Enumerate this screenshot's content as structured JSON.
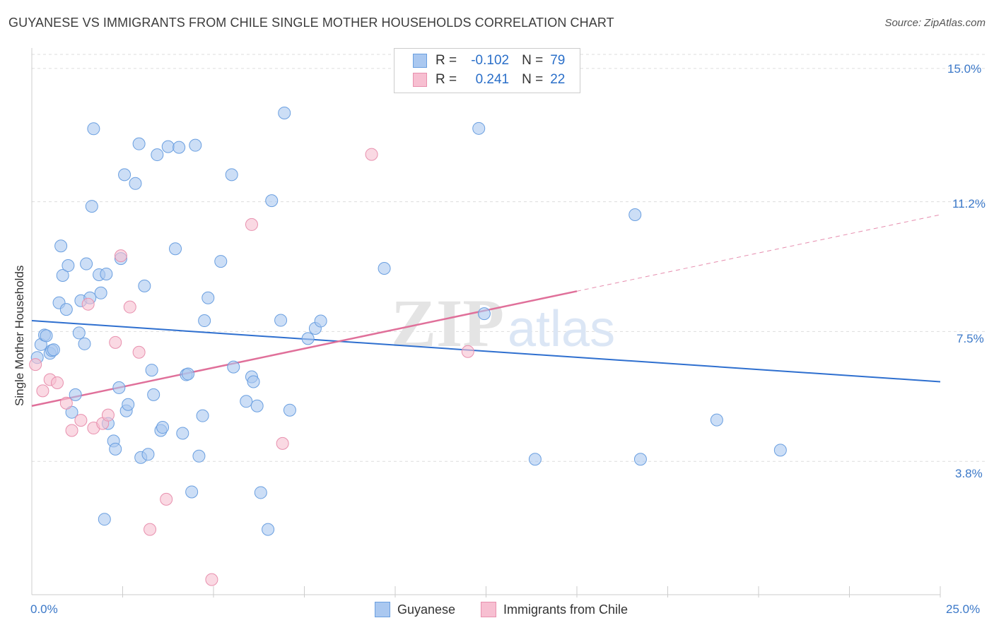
{
  "title": "GUYANESE VS IMMIGRANTS FROM CHILE SINGLE MOTHER HOUSEHOLDS CORRELATION CHART",
  "source": "Source: ZipAtlas.com",
  "legend": {
    "row1": {
      "r_label": "R =",
      "r_value": "-0.102",
      "n_label": "N =",
      "n_value": "79"
    },
    "row2": {
      "r_label": "R =",
      "r_value": "0.241",
      "n_label": "N =",
      "n_value": "22"
    }
  },
  "bottom_legend": {
    "series1": "Guyanese",
    "series2": "Immigrants from Chile"
  },
  "axis_ticks": {
    "x_min": "0.0%",
    "x_max": "25.0%",
    "y1": "15.0%",
    "y2": "11.2%",
    "y3": "7.5%",
    "y4": "3.8%"
  },
  "watermark": {
    "zip": "ZIP",
    "atlas": "atlas"
  },
  "colors": {
    "blue_fill": "#aac8f0",
    "blue_stroke": "#6a9fe0",
    "blue_line": "#2e6fcf",
    "pink_fill": "#f7bfd1",
    "pink_stroke": "#e890ae",
    "pink_line": "#e0709a",
    "tick_text": "#3b78c8"
  },
  "chart_data": {
    "type": "scatter",
    "title": "GUYANESE VS IMMIGRANTS FROM CHILE SINGLE MOTHER HOUSEHOLDS CORRELATION CHART",
    "xlabel": "",
    "ylabel": "Single Mother Households",
    "xlim": [
      0,
      25
    ],
    "ylim": [
      0,
      15.4
    ],
    "y_ticks": [
      3.8,
      7.5,
      11.2,
      15.0
    ],
    "grid": "horizontal dashed",
    "legend_placement": "top-center",
    "series": [
      {
        "name": "Guyanese",
        "R": -0.102,
        "N": 79,
        "trend": {
          "x": [
            0,
            25
          ],
          "y": [
            7.81,
            6.07
          ]
        },
        "points": [
          [
            0.15,
            6.76
          ],
          [
            0.25,
            7.13
          ],
          [
            0.35,
            7.4
          ],
          [
            0.4,
            7.38
          ],
          [
            0.5,
            6.88
          ],
          [
            0.55,
            6.96
          ],
          [
            0.6,
            6.98
          ],
          [
            0.75,
            8.32
          ],
          [
            0.8,
            9.94
          ],
          [
            0.85,
            9.1
          ],
          [
            0.95,
            8.13
          ],
          [
            1.0,
            9.38
          ],
          [
            1.2,
            5.7
          ],
          [
            1.1,
            5.2
          ],
          [
            1.3,
            7.46
          ],
          [
            1.35,
            8.38
          ],
          [
            1.45,
            7.15
          ],
          [
            1.5,
            9.43
          ],
          [
            1.6,
            8.46
          ],
          [
            1.65,
            11.07
          ],
          [
            1.7,
            13.28
          ],
          [
            1.85,
            9.12
          ],
          [
            1.9,
            8.6
          ],
          [
            2.0,
            2.15
          ],
          [
            2.05,
            9.14
          ],
          [
            2.1,
            4.88
          ],
          [
            2.25,
            4.38
          ],
          [
            2.3,
            4.15
          ],
          [
            2.4,
            5.9
          ],
          [
            2.45,
            9.58
          ],
          [
            2.55,
            11.97
          ],
          [
            2.6,
            5.24
          ],
          [
            2.65,
            5.42
          ],
          [
            2.85,
            11.72
          ],
          [
            2.95,
            12.85
          ],
          [
            3.0,
            3.91
          ],
          [
            3.1,
            8.8
          ],
          [
            3.2,
            4.0
          ],
          [
            3.3,
            6.4
          ],
          [
            3.35,
            5.7
          ],
          [
            3.45,
            12.54
          ],
          [
            3.55,
            4.68
          ],
          [
            3.6,
            4.77
          ],
          [
            3.75,
            12.77
          ],
          [
            3.95,
            9.86
          ],
          [
            4.05,
            12.75
          ],
          [
            4.15,
            4.6
          ],
          [
            4.25,
            6.27
          ],
          [
            4.3,
            6.29
          ],
          [
            4.4,
            2.93
          ],
          [
            4.5,
            12.81
          ],
          [
            4.6,
            3.95
          ],
          [
            4.7,
            5.1
          ],
          [
            4.75,
            7.81
          ],
          [
            4.85,
            8.46
          ],
          [
            5.2,
            9.5
          ],
          [
            5.5,
            11.97
          ],
          [
            5.55,
            6.49
          ],
          [
            5.9,
            5.51
          ],
          [
            6.05,
            6.21
          ],
          [
            6.1,
            6.07
          ],
          [
            6.2,
            5.38
          ],
          [
            6.3,
            2.91
          ],
          [
            6.5,
            1.86
          ],
          [
            6.6,
            11.23
          ],
          [
            6.85,
            7.82
          ],
          [
            6.95,
            13.73
          ],
          [
            7.1,
            5.26
          ],
          [
            7.6,
            7.3
          ],
          [
            7.8,
            7.59
          ],
          [
            7.95,
            7.8
          ],
          [
            9.7,
            9.3
          ],
          [
            12.3,
            13.29
          ],
          [
            12.45,
            8.01
          ],
          [
            13.85,
            3.86
          ],
          [
            16.6,
            10.83
          ],
          [
            16.75,
            3.86
          ],
          [
            18.85,
            4.98
          ],
          [
            20.6,
            4.12
          ]
        ]
      },
      {
        "name": "Immigrants from Chile",
        "R": 0.241,
        "N": 22,
        "trend": {
          "x": [
            0,
            25
          ],
          "y": [
            5.38,
            10.83
          ],
          "solid_until_x": 15.0
        },
        "points": [
          [
            0.1,
            6.56
          ],
          [
            0.3,
            5.81
          ],
          [
            0.5,
            6.13
          ],
          [
            0.7,
            6.04
          ],
          [
            0.95,
            5.46
          ],
          [
            1.1,
            4.68
          ],
          [
            1.35,
            4.97
          ],
          [
            1.55,
            8.28
          ],
          [
            1.7,
            4.75
          ],
          [
            1.95,
            4.88
          ],
          [
            2.1,
            5.12
          ],
          [
            2.3,
            7.19
          ],
          [
            2.45,
            9.66
          ],
          [
            2.7,
            8.2
          ],
          [
            2.95,
            6.91
          ],
          [
            3.25,
            1.86
          ],
          [
            3.7,
            2.72
          ],
          [
            4.95,
            0.43
          ],
          [
            6.05,
            10.55
          ],
          [
            6.9,
            4.31
          ],
          [
            9.35,
            12.55
          ],
          [
            12.0,
            6.93
          ]
        ]
      }
    ]
  }
}
